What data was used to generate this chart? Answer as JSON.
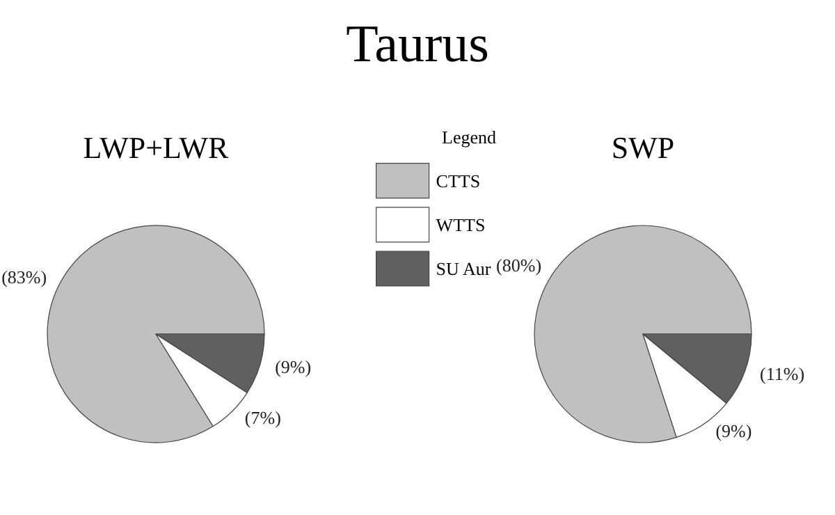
{
  "chart_data": {
    "type": "pie",
    "title": "Taurus",
    "legend_title": "Legend",
    "legend": "top",
    "categories": [
      "CTTS",
      "WTTS",
      "SU Aur"
    ],
    "colors": [
      "#c0c0c0",
      "#ffffff",
      "#606060"
    ],
    "series": [
      {
        "name": "LWP+LWR",
        "values": [
          83,
          7,
          9
        ],
        "value_labels": [
          "(83%)",
          "(7%)",
          "(9%)"
        ]
      },
      {
        "name": "SWP",
        "values": [
          80,
          9,
          11
        ],
        "value_labels": [
          "(80%)",
          "(9%)",
          "(11%)"
        ]
      }
    ]
  }
}
